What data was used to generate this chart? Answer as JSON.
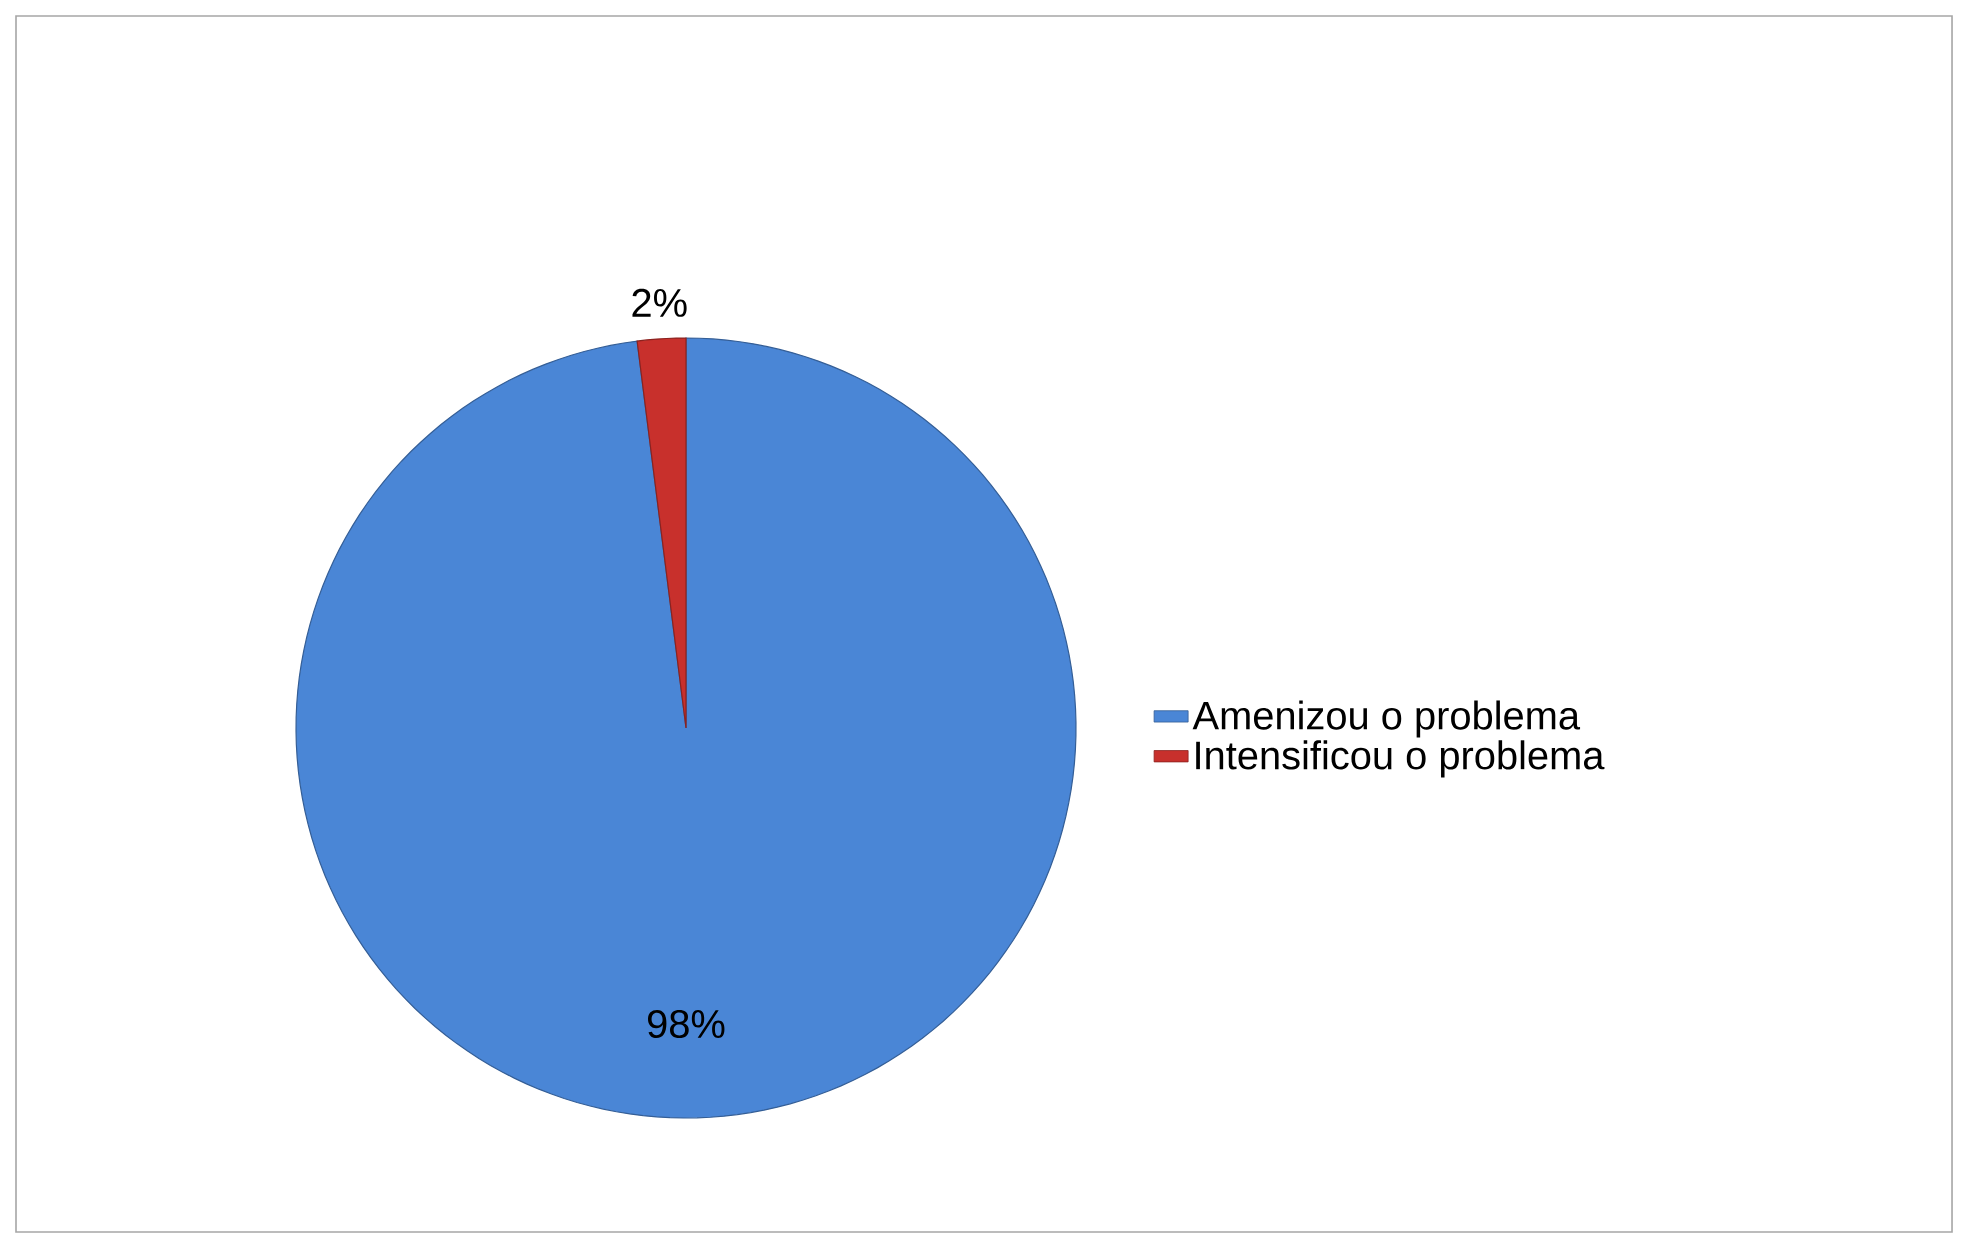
{
  "chart_data": {
    "type": "pie",
    "categories": [
      "Amenizou o problema",
      "Intensificou o problema"
    ],
    "values": [
      98,
      2
    ],
    "colors": [
      "#4a86d6",
      "#c8302c"
    ],
    "value_labels": [
      "98%",
      "2%"
    ],
    "legend": "right"
  }
}
